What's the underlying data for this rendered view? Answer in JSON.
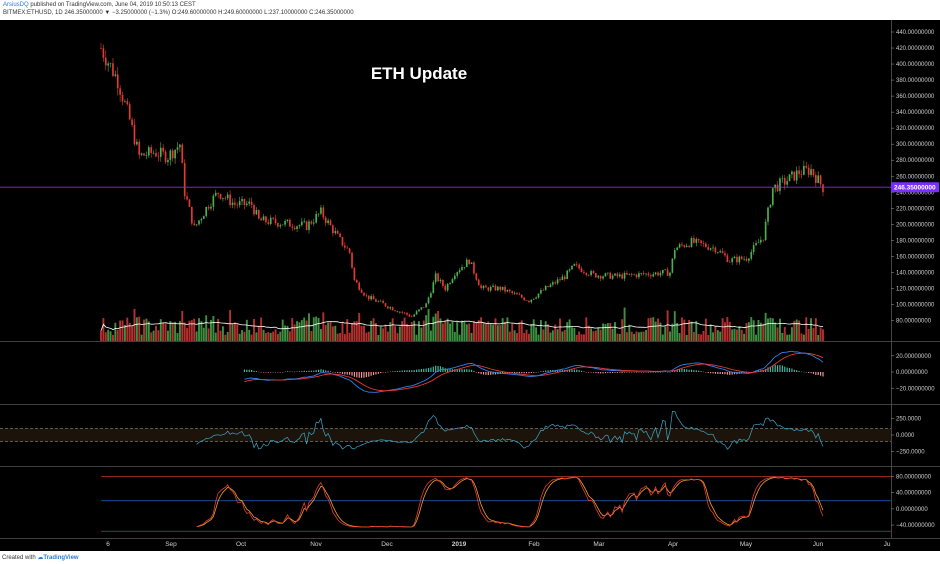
{
  "header": {
    "author": "ArsiusDQ",
    "published": "published on TradingView.com, June 04, 2019 10:50:13 CEST",
    "symbol_line": "BITMEX:ETHUSD, 1D  246.35000000 ▼ −3.25000000 (−1.3%) O:249.60000000 H:249.60000000 L:237.10000000 C:246.35000000"
  },
  "footer": {
    "created_with": "Created with",
    "brand": "TradingView"
  },
  "colors": {
    "up": "#4caf50",
    "down": "#e53935",
    "price_line": "#7b2fff",
    "macd": "#2f80ed",
    "signal": "#e53935",
    "cci": "#39a7c9",
    "stoch_k": "#e53935",
    "stoch_d": "#f0a020",
    "volume_ma": "#ffffff"
  },
  "chart_data": [
    {
      "type": "candlestick",
      "title": "ETH Update",
      "current_price": 246.35,
      "current_price_label": "246.35000000",
      "y_ticks": [
        440,
        420,
        400,
        380,
        360,
        340,
        320,
        300,
        280,
        260,
        240,
        220,
        200,
        180,
        160,
        140,
        120,
        100,
        80
      ],
      "y_tick_labels": [
        "440.00000000",
        "420.00000000",
        "400.00000000",
        "380.00000000",
        "360.00000000",
        "340.00000000",
        "320.00000000",
        "300.00000000",
        "280.00000000",
        "260.00000000",
        "240.00000000",
        "220.00000000",
        "200.00000000",
        "180.00000000",
        "160.00000000",
        "140.00000000",
        "120.00000000",
        "100.00000000",
        "80.00000000"
      ],
      "ylim": [
        70,
        452
      ],
      "x_labels": [
        "6",
        "Sep",
        "Oct",
        "Nov",
        "Dec",
        "2019",
        "Feb",
        "Mar",
        "Apr",
        "May",
        "Jun",
        "Ju"
      ],
      "price_path": [
        {
          "date": "2018-08-06",
          "close": 420
        },
        {
          "date": "2018-08-13",
          "close": 380
        },
        {
          "date": "2018-08-18",
          "close": 330
        },
        {
          "date": "2018-08-22",
          "close": 285
        },
        {
          "date": "2018-08-28",
          "close": 290
        },
        {
          "date": "2018-09-03",
          "close": 285
        },
        {
          "date": "2018-09-08",
          "close": 300
        },
        {
          "date": "2018-09-10",
          "close": 240
        },
        {
          "date": "2018-09-14",
          "close": 195
        },
        {
          "date": "2018-09-20",
          "close": 225
        },
        {
          "date": "2018-09-24",
          "close": 240
        },
        {
          "date": "2018-10-01",
          "close": 225
        },
        {
          "date": "2018-10-08",
          "close": 225
        },
        {
          "date": "2018-10-11",
          "close": 205
        },
        {
          "date": "2018-10-20",
          "close": 202
        },
        {
          "date": "2018-10-31",
          "close": 198
        },
        {
          "date": "2018-11-06",
          "close": 215
        },
        {
          "date": "2018-11-14",
          "close": 180
        },
        {
          "date": "2018-11-18",
          "close": 165
        },
        {
          "date": "2018-11-20",
          "close": 130
        },
        {
          "date": "2018-11-25",
          "close": 110
        },
        {
          "date": "2018-12-06",
          "close": 95
        },
        {
          "date": "2018-12-14",
          "close": 85
        },
        {
          "date": "2018-12-20",
          "close": 100
        },
        {
          "date": "2018-12-24",
          "close": 135
        },
        {
          "date": "2018-12-28",
          "close": 120
        },
        {
          "date": "2019-01-01",
          "close": 140
        },
        {
          "date": "2019-01-07",
          "close": 155
        },
        {
          "date": "2019-01-12",
          "close": 120
        },
        {
          "date": "2019-01-20",
          "close": 120
        },
        {
          "date": "2019-02-01",
          "close": 105
        },
        {
          "date": "2019-02-08",
          "close": 120
        },
        {
          "date": "2019-02-16",
          "close": 135
        },
        {
          "date": "2019-02-20",
          "close": 148
        },
        {
          "date": "2019-02-28",
          "close": 137
        },
        {
          "date": "2019-03-10",
          "close": 135
        },
        {
          "date": "2019-03-22",
          "close": 138
        },
        {
          "date": "2019-04-01",
          "close": 140
        },
        {
          "date": "2019-04-03",
          "close": 170
        },
        {
          "date": "2019-04-10",
          "close": 178
        },
        {
          "date": "2019-04-20",
          "close": 170
        },
        {
          "date": "2019-04-26",
          "close": 155
        },
        {
          "date": "2019-05-03",
          "close": 158
        },
        {
          "date": "2019-05-10",
          "close": 185
        },
        {
          "date": "2019-05-14",
          "close": 245
        },
        {
          "date": "2019-05-20",
          "close": 255
        },
        {
          "date": "2019-05-25",
          "close": 265
        },
        {
          "date": "2019-05-30",
          "close": 268
        },
        {
          "date": "2019-06-04",
          "close": 246
        }
      ]
    },
    {
      "type": "histogram_line",
      "name": "MACD",
      "y_ticks": [
        20,
        0,
        -20
      ],
      "y_tick_labels": [
        "20.00000000",
        "0.00000000",
        "−20.00000000"
      ]
    },
    {
      "type": "line",
      "name": "CCI",
      "y_ticks": [
        250,
        0,
        -250
      ],
      "y_tick_labels": [
        "250.0000",
        "0.0000",
        "−250.0000"
      ]
    },
    {
      "type": "line",
      "name": "Stochastic",
      "y_ticks": [
        80,
        40,
        0,
        -40
      ],
      "y_tick_labels": [
        "80.00000000",
        "40.00000000",
        "0.00000000",
        "−40.00000000"
      ]
    }
  ]
}
